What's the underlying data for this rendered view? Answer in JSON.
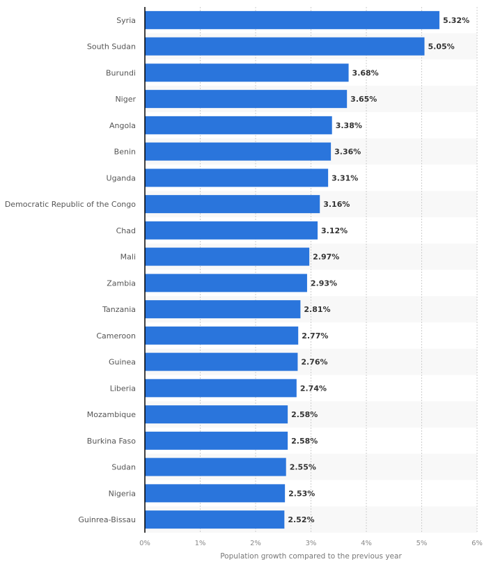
{
  "chart_data": {
    "type": "bar",
    "orientation": "horizontal",
    "title": "",
    "xlabel": "Population growth compared to the previous year",
    "ylabel": "",
    "xlim": [
      0,
      6
    ],
    "grid": true,
    "bar_color": "#2a75dc",
    "tick_labels": [
      "0%",
      "1%",
      "2%",
      "3%",
      "4%",
      "5%",
      "6%"
    ],
    "categories": [
      "Syria",
      "South Sudan",
      "Burundi",
      "Niger",
      "Angola",
      "Benin",
      "Uganda",
      "Democratic Republic of the Congo",
      "Chad",
      "Mali",
      "Zambia",
      "Tanzania",
      "Cameroon",
      "Guinea",
      "Liberia",
      "Mozambique",
      "Burkina Faso",
      "Sudan",
      "Nigeria",
      "Guinrea-Bissau"
    ],
    "values": [
      5.32,
      5.05,
      3.68,
      3.65,
      3.38,
      3.36,
      3.31,
      3.16,
      3.12,
      2.97,
      2.93,
      2.81,
      2.77,
      2.76,
      2.74,
      2.58,
      2.58,
      2.55,
      2.53,
      2.52
    ],
    "value_labels": [
      "5.32%",
      "5.05%",
      "3.68%",
      "3.65%",
      "3.38%",
      "3.36%",
      "3.31%",
      "3.16%",
      "3.12%",
      "2.97%",
      "2.93%",
      "2.81%",
      "2.77%",
      "2.76%",
      "2.74%",
      "2.58%",
      "2.58%",
      "2.55%",
      "2.53%",
      "2.52%"
    ]
  }
}
